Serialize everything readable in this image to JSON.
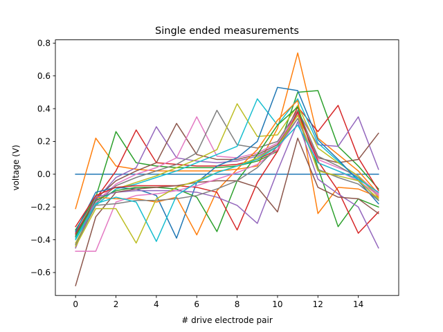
{
  "chart_data": {
    "type": "line",
    "title": "Single ended measurements",
    "xlabel": "# drive electrode pair",
    "ylabel": "voltage (V)",
    "x": [
      0,
      1,
      2,
      3,
      4,
      5,
      6,
      7,
      8,
      9,
      10,
      11,
      12,
      13,
      14,
      15
    ],
    "xlim": [
      -1,
      16
    ],
    "ylim": [
      -0.74,
      0.82
    ],
    "xticks": [
      0,
      2,
      4,
      6,
      8,
      10,
      12,
      14
    ],
    "yticks": [
      -0.6,
      -0.4,
      -0.2,
      0.0,
      0.2,
      0.4,
      0.6,
      0.8
    ],
    "xtick_labels": [
      "0",
      "2",
      "4",
      "6",
      "8",
      "10",
      "12",
      "14"
    ],
    "ytick_labels": [
      "−0.6",
      "−0.4",
      "−0.2",
      "0.0",
      "0.2",
      "0.4",
      "0.6",
      "0.8"
    ],
    "grid": false,
    "legend": "none",
    "colors": [
      "#1f77b4",
      "#ff7f0e",
      "#2ca02c",
      "#d62728",
      "#9467bd",
      "#8c564b",
      "#e377c2",
      "#7f7f7f",
      "#bcbd22",
      "#17becf"
    ],
    "series": [
      {
        "values": [
          0.0,
          0.0,
          0.0,
          0.0,
          0.0,
          0.0,
          0.0,
          0.0,
          0.0,
          0.0,
          0.0,
          0.0,
          0.0,
          0.0,
          0.0,
          0.0
        ]
      },
      {
        "values": [
          -0.21,
          0.22,
          0.05,
          0.03,
          0.02,
          0.02,
          0.02,
          0.02,
          0.03,
          0.05,
          0.28,
          0.74,
          0.22,
          0.12,
          0.02,
          -0.12
        ]
      },
      {
        "values": [
          -0.34,
          -0.14,
          0.26,
          0.07,
          0.05,
          0.04,
          0.04,
          0.04,
          0.05,
          0.08,
          0.14,
          0.5,
          0.51,
          0.17,
          0.05,
          -0.09
        ]
      },
      {
        "values": [
          -0.36,
          -0.15,
          0.02,
          0.27,
          0.07,
          0.06,
          0.05,
          0.05,
          0.06,
          0.09,
          0.15,
          0.41,
          0.26,
          0.42,
          0.1,
          -0.1
        ]
      },
      {
        "values": [
          -0.38,
          -0.16,
          -0.02,
          0.04,
          0.29,
          0.1,
          0.08,
          0.07,
          0.08,
          0.11,
          0.17,
          0.38,
          0.18,
          0.17,
          0.35,
          0.03
        ]
      },
      {
        "values": [
          -0.37,
          -0.15,
          -0.04,
          0.02,
          0.07,
          0.31,
          0.12,
          0.09,
          0.09,
          0.12,
          0.18,
          0.36,
          0.1,
          0.07,
          0.09,
          0.25
        ]
      },
      {
        "values": [
          -0.38,
          -0.17,
          -0.06,
          0.0,
          0.04,
          0.1,
          0.35,
          0.11,
          0.1,
          0.13,
          0.19,
          0.37,
          0.09,
          0.04,
          -0.01,
          -0.12
        ]
      },
      {
        "values": [
          -0.43,
          -0.18,
          -0.07,
          -0.02,
          0.02,
          0.06,
          0.13,
          0.39,
          0.18,
          0.16,
          0.2,
          0.39,
          0.11,
          0.05,
          -0.02,
          -0.13
        ]
      },
      {
        "values": [
          -0.42,
          -0.19,
          -0.09,
          -0.05,
          -0.01,
          0.04,
          0.09,
          0.15,
          0.43,
          0.23,
          0.24,
          0.42,
          0.16,
          0.07,
          -0.01,
          -0.14
        ]
      },
      {
        "values": [
          -0.4,
          -0.19,
          -0.09,
          -0.06,
          -0.02,
          0.02,
          0.07,
          0.12,
          0.17,
          0.46,
          0.3,
          0.46,
          0.19,
          0.08,
          -0.03,
          -0.16
        ]
      },
      {
        "values": [
          -0.35,
          -0.11,
          -0.08,
          -0.09,
          -0.13,
          -0.39,
          -0.05,
          0.05,
          0.1,
          0.2,
          0.53,
          0.51,
          0.21,
          0.09,
          -0.04,
          -0.18
        ]
      },
      {
        "values": [
          -0.45,
          -0.14,
          -0.15,
          -0.15,
          -0.17,
          -0.14,
          -0.37,
          -0.1,
          0.03,
          0.15,
          0.33,
          0.45,
          -0.24,
          -0.08,
          -0.09,
          -0.14
        ]
      },
      {
        "values": [
          -0.38,
          -0.16,
          -0.1,
          -0.08,
          -0.08,
          -0.09,
          -0.14,
          -0.35,
          -0.04,
          0.12,
          0.3,
          0.41,
          0.04,
          -0.32,
          -0.15,
          -0.2
        ]
      },
      {
        "values": [
          -0.32,
          -0.13,
          -0.08,
          -0.07,
          -0.07,
          -0.07,
          -0.08,
          -0.11,
          -0.34,
          -0.05,
          0.14,
          0.38,
          0.08,
          -0.1,
          -0.36,
          -0.23
        ]
      },
      {
        "values": [
          -0.45,
          -0.14,
          -0.11,
          -0.1,
          -0.1,
          -0.1,
          -0.11,
          -0.14,
          -0.19,
          -0.3,
          0.02,
          0.32,
          -0.03,
          -0.12,
          -0.2,
          -0.45
        ]
      },
      {
        "values": [
          -0.68,
          -0.26,
          -0.11,
          -0.09,
          -0.08,
          -0.07,
          -0.05,
          -0.04,
          -0.04,
          -0.08,
          -0.23,
          0.22,
          -0.08,
          -0.14,
          -0.15,
          -0.24
        ]
      },
      {
        "values": [
          -0.47,
          -0.47,
          -0.17,
          -0.13,
          -0.12,
          -0.1,
          -0.07,
          -0.03,
          0.01,
          0.06,
          0.15,
          0.34,
          0.07,
          0.02,
          -0.04,
          -0.13
        ]
      },
      {
        "values": [
          -0.43,
          -0.19,
          -0.18,
          -0.16,
          -0.16,
          -0.15,
          -0.13,
          -0.09,
          -0.04,
          0.04,
          0.17,
          0.34,
          0.03,
          -0.02,
          -0.06,
          -0.16
        ]
      },
      {
        "values": [
          -0.44,
          -0.21,
          -0.21,
          -0.42,
          -0.15,
          -0.08,
          -0.04,
          0.01,
          0.05,
          0.1,
          0.17,
          0.36,
          0.02,
          -0.01,
          -0.04,
          -0.15
        ]
      },
      {
        "values": [
          -0.39,
          -0.18,
          -0.14,
          -0.17,
          -0.41,
          -0.13,
          -0.05,
          0.01,
          0.05,
          0.09,
          0.17,
          0.3,
          0.07,
          0.02,
          -0.03,
          -0.11
        ]
      }
    ]
  }
}
